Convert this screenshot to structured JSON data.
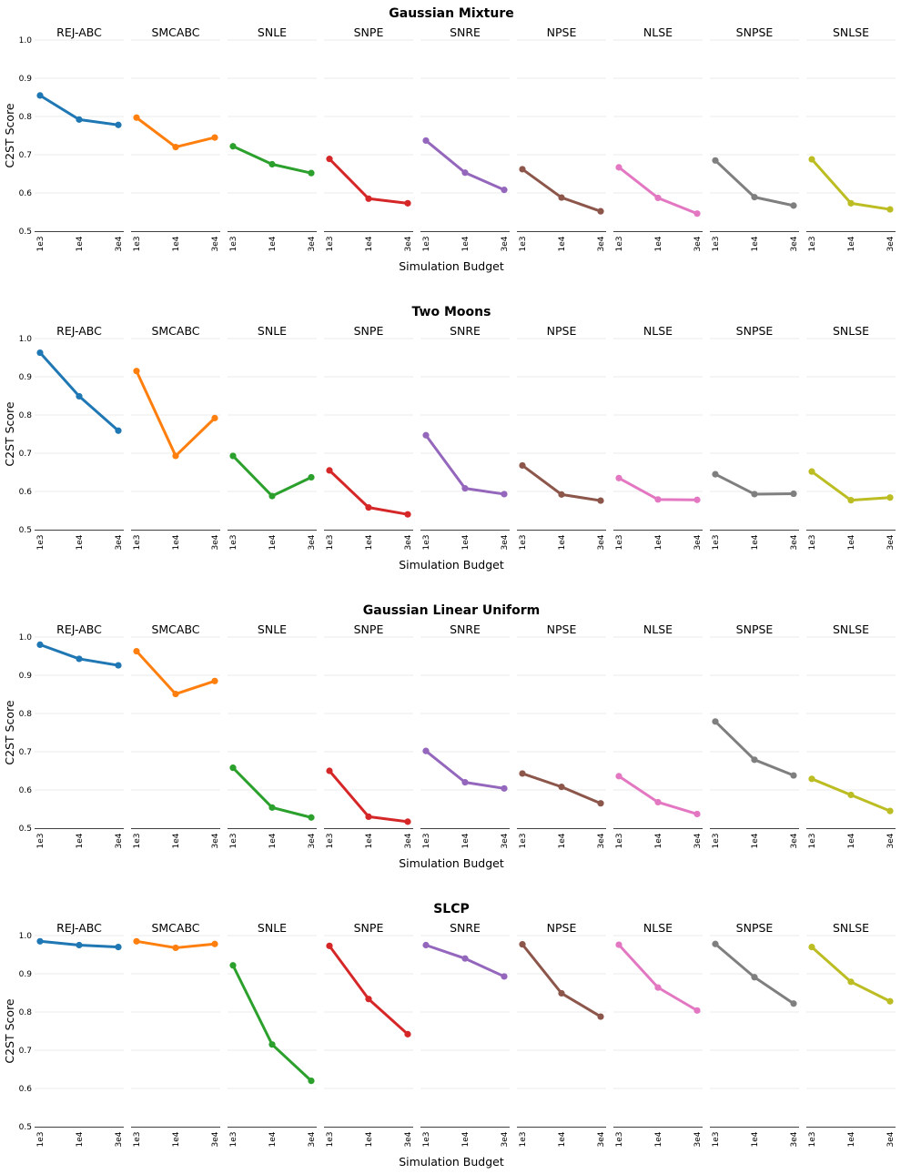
{
  "chart_data": {
    "type": "line",
    "methods": [
      "REJ-ABC",
      "SMCABC",
      "SNLE",
      "SNPE",
      "SNRE",
      "NPSE",
      "NLSE",
      "SNPSE",
      "SNLSE"
    ],
    "colors": [
      "#1f77b4",
      "#ff7f0e",
      "#2ca02c",
      "#d62728",
      "#9467bd",
      "#8c564b",
      "#e377c2",
      "#7f7f7f",
      "#bcbd22"
    ],
    "x": [
      "1e3",
      "1e4",
      "3e4"
    ],
    "xlabel": "Simulation Budget",
    "ylabel": "C2ST Score",
    "grid": true,
    "panels": [
      {
        "title": "Gaussian Mixture",
        "ylim": [
          0.5,
          1.0
        ],
        "yticks": [
          "0.5",
          "0.6",
          "0.7",
          "0.8",
          "0.9",
          "1.0"
        ],
        "series": [
          [
            0.855,
            0.792,
            0.778
          ],
          [
            0.797,
            0.72,
            0.745
          ],
          [
            0.722,
            0.675,
            0.652
          ],
          [
            0.689,
            0.585,
            0.573
          ],
          [
            0.737,
            0.653,
            0.608
          ],
          [
            0.662,
            0.588,
            0.552
          ],
          [
            0.667,
            0.587,
            0.546
          ],
          [
            0.685,
            0.589,
            0.567
          ],
          [
            0.688,
            0.573,
            0.557
          ]
        ]
      },
      {
        "title": "Two Moons",
        "ylim": [
          0.5,
          1.0
        ],
        "yticks": [
          "0.5",
          "0.6",
          "0.7",
          "0.8",
          "0.9",
          "1.0"
        ],
        "series": [
          [
            0.963,
            0.849,
            0.759
          ],
          [
            0.915,
            0.693,
            0.792
          ],
          [
            0.693,
            0.588,
            0.637
          ],
          [
            0.655,
            0.558,
            0.54
          ],
          [
            0.747,
            0.608,
            0.593
          ],
          [
            0.668,
            0.592,
            0.576
          ],
          [
            0.635,
            0.579,
            0.578
          ],
          [
            0.645,
            0.593,
            0.594
          ],
          [
            0.652,
            0.577,
            0.584
          ]
        ]
      },
      {
        "title": "Gaussian Linear Uniform",
        "ylim": [
          0.5,
          1.0
        ],
        "yticks": [
          "0.5",
          "0.6",
          "0.7",
          "0.8",
          "0.9",
          "1.0"
        ],
        "series": [
          [
            0.98,
            0.943,
            0.926
          ],
          [
            0.963,
            0.851,
            0.885
          ],
          [
            0.658,
            0.554,
            0.528
          ],
          [
            0.65,
            0.53,
            0.517
          ],
          [
            0.702,
            0.62,
            0.604
          ],
          [
            0.643,
            0.608,
            0.565
          ],
          [
            0.636,
            0.568,
            0.537
          ],
          [
            0.779,
            0.679,
            0.638
          ],
          [
            0.629,
            0.587,
            0.545
          ]
        ]
      },
      {
        "title": "SLCP",
        "ylim": [
          0.5,
          1.0
        ],
        "yticks": [
          "0.5",
          "0.6",
          "0.7",
          "0.8",
          "0.9",
          "1.0"
        ],
        "series": [
          [
            0.985,
            0.975,
            0.97
          ],
          [
            0.985,
            0.968,
            0.978
          ],
          [
            0.922,
            0.715,
            0.62
          ],
          [
            0.973,
            0.834,
            0.742
          ],
          [
            0.975,
            0.94,
            0.893
          ],
          [
            0.977,
            0.849,
            0.788
          ],
          [
            0.976,
            0.864,
            0.804
          ],
          [
            0.978,
            0.891,
            0.822
          ],
          [
            0.97,
            0.879,
            0.828
          ]
        ]
      }
    ]
  }
}
